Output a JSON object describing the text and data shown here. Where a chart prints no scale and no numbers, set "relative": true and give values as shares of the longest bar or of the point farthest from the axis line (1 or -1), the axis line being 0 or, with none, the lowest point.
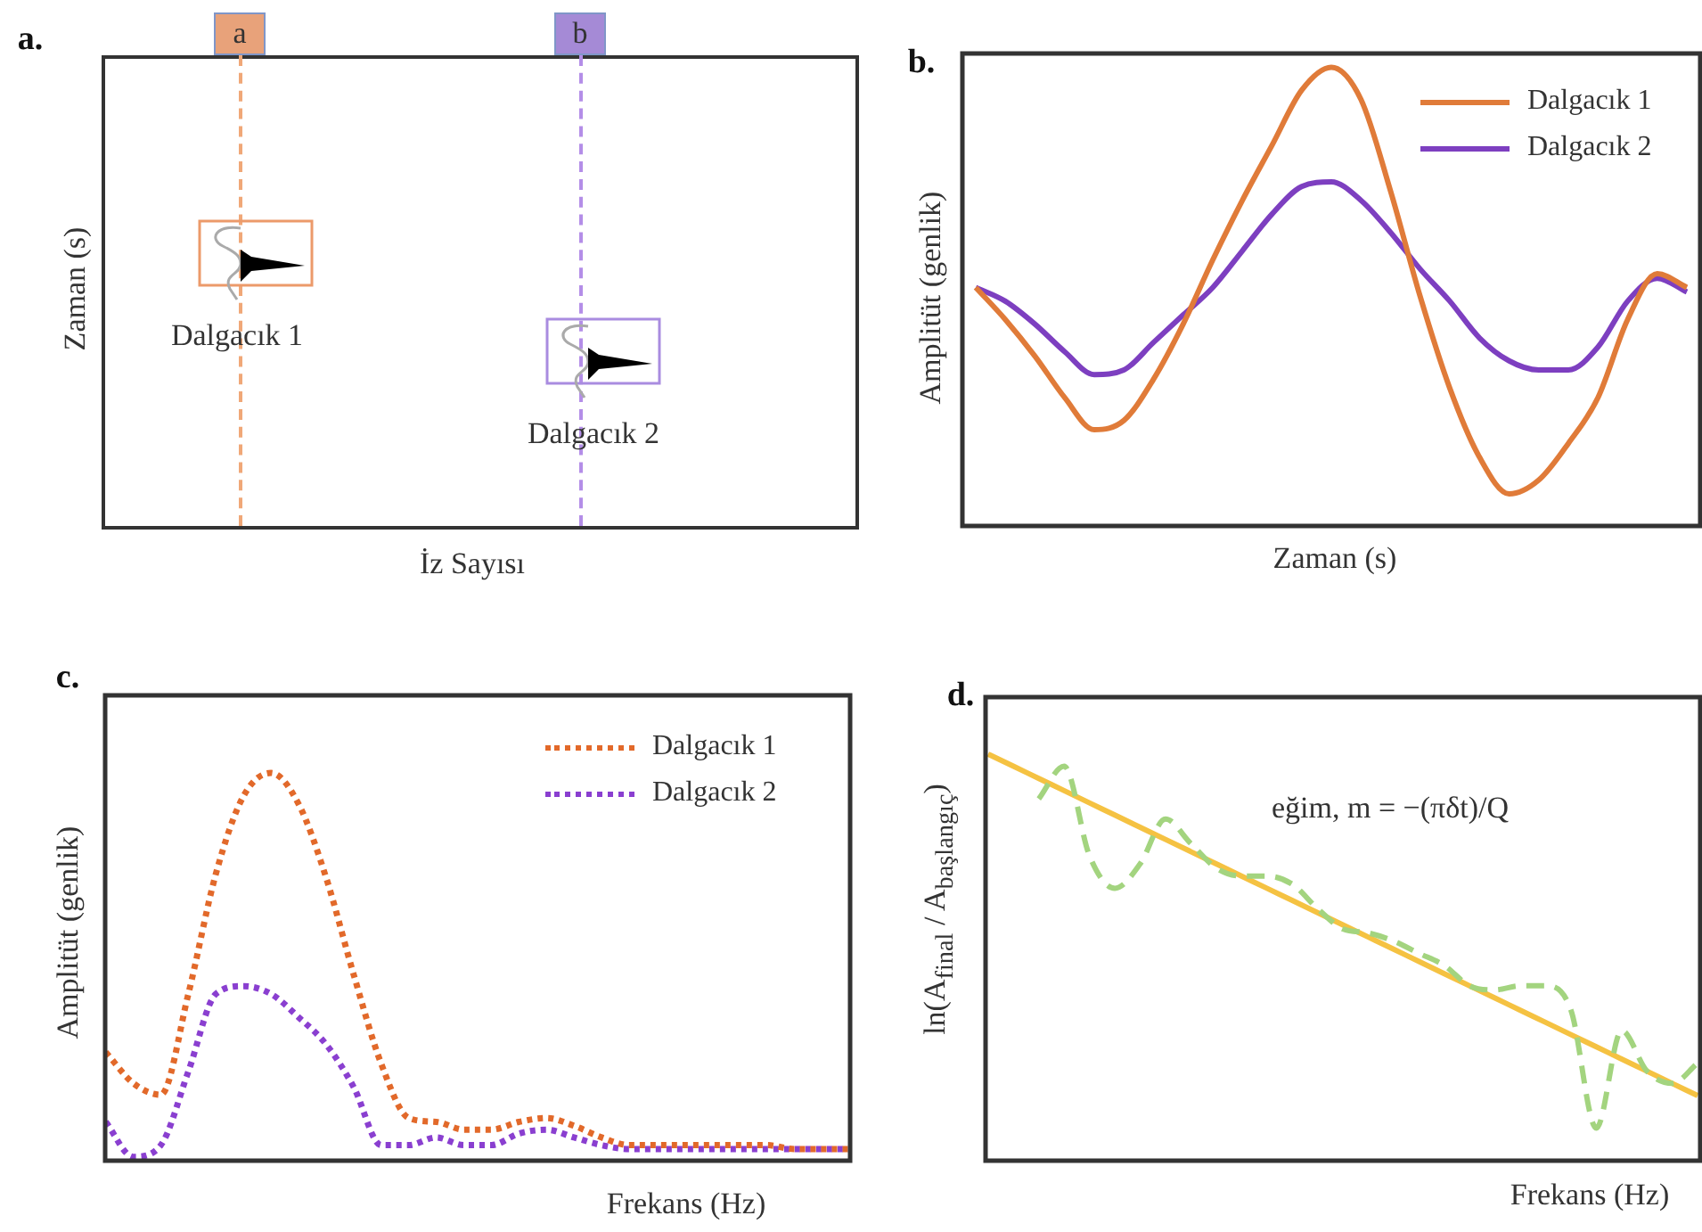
{
  "chart_data": [
    {
      "type": "other",
      "title": "a.",
      "xlabel": "İz Sayısı",
      "ylabel": "Zaman (s)",
      "annotations": [
        "a",
        "b",
        "Dalgacık 1",
        "Dalgacık 2"
      ]
    },
    {
      "type": "line",
      "title": "b.",
      "xlabel": "Zaman (s)",
      "ylabel": "Amplitüt (genlik)",
      "relative": true,
      "legend": "top right",
      "marker": "none",
      "line_style": "solid",
      "categories": [
        null,
        null,
        null,
        null,
        null,
        null,
        null,
        null,
        null,
        null,
        null,
        null,
        null,
        null,
        null,
        null,
        null,
        null,
        null,
        null,
        null,
        null,
        null,
        null,
        null
      ],
      "series": [
        {
          "name": "Dalgacık 1",
          "color": "#e07b39",
          "values": [
            0.52,
            0.45,
            0.37,
            0.28,
            0.21,
            0.23,
            0.32,
            0.44,
            0.58,
            0.71,
            0.83,
            0.95,
            1.0,
            0.93,
            0.73,
            0.5,
            0.3,
            0.15,
            0.07,
            0.1,
            0.18,
            0.28,
            0.45,
            0.55,
            0.52
          ]
        },
        {
          "name": "Dalgacık 2",
          "color": "#7d3fc0",
          "values": [
            0.52,
            0.49,
            0.44,
            0.38,
            0.33,
            0.34,
            0.4,
            0.46,
            0.52,
            0.6,
            0.68,
            0.74,
            0.75,
            0.71,
            0.64,
            0.56,
            0.49,
            0.41,
            0.36,
            0.34,
            0.34,
            0.39,
            0.49,
            0.54,
            0.51
          ]
        }
      ]
    },
    {
      "type": "line",
      "title": "c.",
      "xlabel": "Frekans (Hz)",
      "ylabel": "Amplitüt (genlik)",
      "relative": true,
      "legend": "top right",
      "marker": "none",
      "line_style": "dotted",
      "categories": [
        null,
        null,
        null,
        null,
        null,
        null,
        null,
        null,
        null,
        null,
        null,
        null,
        null,
        null,
        null,
        null,
        null,
        null,
        null,
        null,
        null,
        null,
        null,
        null,
        null,
        null,
        null,
        null
      ],
      "series": [
        {
          "name": "Dalgacık 1",
          "color": "#e2692a",
          "values": [
            0.28,
            0.2,
            0.17,
            0.43,
            0.74,
            0.94,
            1.0,
            0.92,
            0.73,
            0.48,
            0.25,
            0.11,
            0.1,
            0.08,
            0.08,
            0.1,
            0.11,
            0.09,
            0.06,
            0.04,
            0.04,
            0.04,
            0.04,
            0.04,
            0.04,
            0.03,
            0.03,
            0.03
          ]
        },
        {
          "name": "Dalgacık 2",
          "color": "#8a3fd0",
          "values": [
            0.1,
            0.01,
            0.04,
            0.23,
            0.43,
            0.45,
            0.43,
            0.37,
            0.3,
            0.19,
            0.04,
            0.04,
            0.06,
            0.04,
            0.04,
            0.07,
            0.08,
            0.06,
            0.04,
            0.03,
            0.03,
            0.03,
            0.03,
            0.03,
            0.03,
            0.03,
            0.03,
            0.03
          ]
        }
      ]
    },
    {
      "type": "line",
      "title": "d.",
      "xlabel": "Frekans (Hz)",
      "ylabel": "ln(A$_{final}$ / A$_{başlangıç}$)",
      "relative": true,
      "marker": "none",
      "annotations": [
        "eğim, m = −(πδt)/Q"
      ],
      "categories": [
        null,
        null,
        null,
        null,
        null,
        null,
        null,
        null,
        null,
        null,
        null,
        null,
        null,
        null,
        null,
        null,
        null,
        null,
        null,
        null,
        null,
        null,
        null,
        null,
        null,
        null,
        null,
        null,
        null
      ],
      "series": [
        {
          "color": "#a3d47f",
          "line_style": "dashed",
          "values": [
            null,
            null,
            0.89,
            0.97,
            0.75,
            0.67,
            0.73,
            0.84,
            0.78,
            0.72,
            0.7,
            0.7,
            0.68,
            0.62,
            0.57,
            0.56,
            0.54,
            0.51,
            0.48,
            0.43,
            0.42,
            0.43,
            0.43,
            0.37,
            0.08,
            0.32,
            0.22,
            0.19,
            0.24
          ]
        },
        {
          "color": "#f5c242",
          "line_style": "solid",
          "values": [
            1.0,
            0.97,
            0.94,
            0.91,
            0.88,
            0.85,
            0.82,
            0.79,
            0.76,
            0.73,
            0.7,
            0.67,
            0.64,
            0.61,
            0.58,
            0.55,
            0.52,
            0.49,
            0.46,
            0.43,
            0.4,
            0.37,
            0.34,
            0.31,
            0.28,
            0.25,
            0.22,
            0.19,
            0.16
          ]
        }
      ]
    }
  ]
}
